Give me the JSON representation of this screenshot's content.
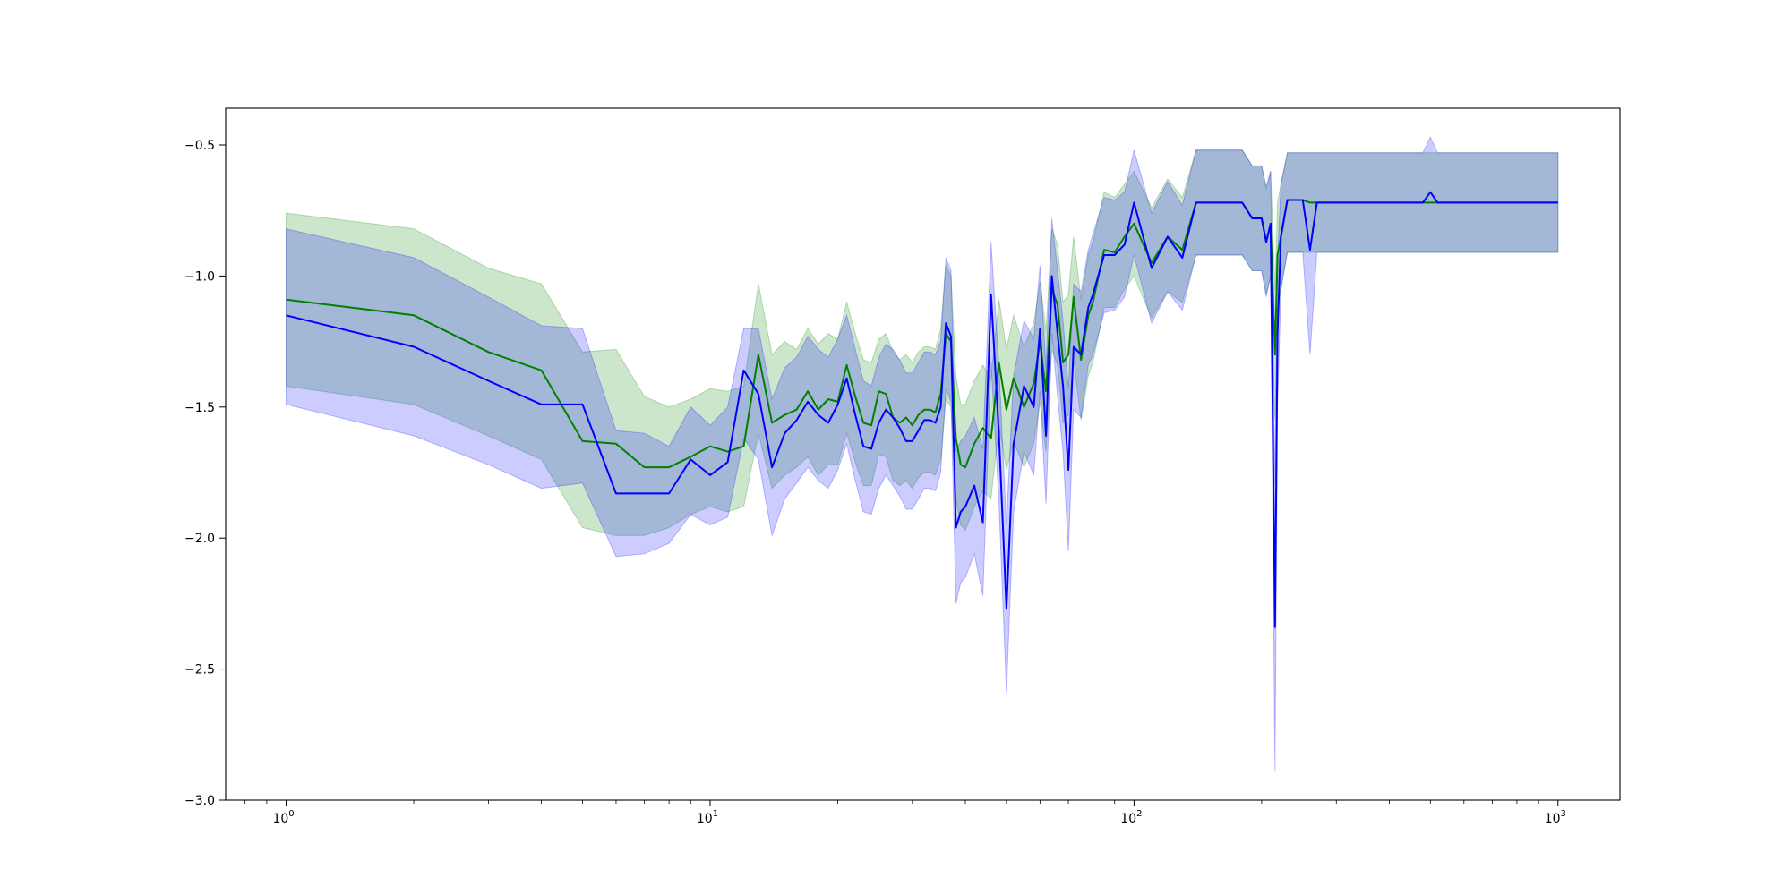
{
  "chart_data": {
    "type": "line",
    "title": "",
    "xlabel": "",
    "ylabel": "",
    "xscale": "log",
    "xlim": [
      0.72,
      1400
    ],
    "ylim": [
      -3.0,
      -0.36
    ],
    "grid": false,
    "legend": "none",
    "x_ticks": [
      {
        "value": 1,
        "base": "10",
        "exp": "0"
      },
      {
        "value": 10,
        "base": "10",
        "exp": "1"
      },
      {
        "value": 100,
        "base": "10",
        "exp": "2"
      },
      {
        "value": 1000,
        "base": "10",
        "exp": "3"
      }
    ],
    "y_ticks": [
      {
        "value": -0.5,
        "label": "−0.5"
      },
      {
        "value": -1.0,
        "label": "−1.0"
      },
      {
        "value": -1.5,
        "label": "−1.5"
      },
      {
        "value": -2.0,
        "label": "−2.0"
      },
      {
        "value": -2.5,
        "label": "−2.5"
      },
      {
        "value": -3.0,
        "label": "−3.0"
      }
    ],
    "series": [
      {
        "color": "#008000",
        "band_color": "#008000",
        "band_opacity": 0.2,
        "x": [
          1,
          2,
          3,
          4,
          5,
          6,
          7,
          8,
          9,
          10,
          11,
          12,
          13,
          14,
          15,
          16,
          17,
          18,
          19,
          20,
          21,
          22,
          23,
          24,
          25,
          26,
          27,
          28,
          29,
          30,
          31,
          32,
          33,
          34,
          35,
          36,
          37,
          38,
          39,
          40,
          42,
          44,
          46,
          48,
          50,
          52,
          55,
          58,
          60,
          62,
          64,
          66,
          68,
          70,
          72,
          75,
          78,
          80,
          85,
          90,
          95,
          100,
          110,
          120,
          130,
          140,
          150,
          160,
          170,
          180,
          190,
          200,
          205,
          210,
          215,
          218,
          222,
          230,
          240,
          250,
          260,
          270,
          280,
          300,
          320,
          350,
          400,
          450,
          480,
          500,
          520,
          600,
          700,
          800,
          900,
          1000
        ],
        "y": [
          -1.09,
          -1.15,
          -1.29,
          -1.36,
          -1.63,
          -1.64,
          -1.73,
          -1.73,
          -1.69,
          -1.65,
          -1.67,
          -1.65,
          -1.3,
          -1.56,
          -1.53,
          -1.51,
          -1.44,
          -1.51,
          -1.47,
          -1.48,
          -1.34,
          -1.46,
          -1.56,
          -1.57,
          -1.44,
          -1.45,
          -1.54,
          -1.56,
          -1.54,
          -1.57,
          -1.53,
          -1.51,
          -1.51,
          -1.52,
          -1.45,
          -1.22,
          -1.25,
          -1.62,
          -1.72,
          -1.73,
          -1.64,
          -1.58,
          -1.62,
          -1.33,
          -1.51,
          -1.39,
          -1.5,
          -1.41,
          -1.25,
          -1.44,
          -1.05,
          -1.11,
          -1.33,
          -1.3,
          -1.08,
          -1.32,
          -1.15,
          -1.1,
          -0.9,
          -0.91,
          -0.85,
          -0.8,
          -0.95,
          -0.85,
          -0.9,
          -0.72,
          -0.72,
          -0.72,
          -0.72,
          -0.72,
          -0.78,
          -0.78,
          -0.87,
          -0.8,
          -1.3,
          -0.92,
          -0.85,
          -0.71,
          -0.71,
          -0.71,
          -0.72,
          -0.72,
          -0.72,
          -0.72,
          -0.72,
          -0.72,
          -0.72,
          -0.72,
          -0.72,
          -0.72,
          -0.72,
          -0.72,
          -0.72,
          -0.72,
          -0.72,
          -0.72
        ],
        "lower": [
          -1.42,
          -1.49,
          -1.61,
          -1.7,
          -1.96,
          -1.99,
          -1.99,
          -1.96,
          -1.91,
          -1.88,
          -1.9,
          -1.88,
          -1.6,
          -1.81,
          -1.76,
          -1.73,
          -1.69,
          -1.76,
          -1.72,
          -1.72,
          -1.6,
          -1.71,
          -1.8,
          -1.8,
          -1.68,
          -1.69,
          -1.78,
          -1.8,
          -1.78,
          -1.81,
          -1.77,
          -1.75,
          -1.75,
          -1.76,
          -1.7,
          -1.47,
          -1.5,
          -1.85,
          -1.95,
          -1.97,
          -1.88,
          -1.82,
          -1.85,
          -1.57,
          -1.74,
          -1.63,
          -1.73,
          -1.64,
          -1.48,
          -1.67,
          -1.28,
          -1.34,
          -1.56,
          -1.53,
          -1.32,
          -1.55,
          -1.38,
          -1.33,
          -1.12,
          -1.12,
          -1.05,
          -1.0,
          -1.16,
          -1.06,
          -1.1,
          -0.92,
          -0.92,
          -0.92,
          -0.92,
          -0.92,
          -0.98,
          -0.98,
          -1.07,
          -1.0,
          -1.55,
          -1.13,
          -1.05,
          -0.91,
          -0.91,
          -0.91,
          -0.91,
          -0.91,
          -0.91,
          -0.91,
          -0.91,
          -0.91,
          -0.91,
          -0.91,
          -0.91,
          -0.91,
          -0.91,
          -0.91,
          -0.91,
          -0.91,
          -0.91,
          -0.91
        ],
        "upper": [
          -0.76,
          -0.82,
          -0.97,
          -1.03,
          -1.29,
          -1.28,
          -1.46,
          -1.5,
          -1.47,
          -1.43,
          -1.44,
          -1.42,
          -1.03,
          -1.3,
          -1.25,
          -1.28,
          -1.2,
          -1.26,
          -1.22,
          -1.24,
          -1.1,
          -1.22,
          -1.32,
          -1.33,
          -1.24,
          -1.22,
          -1.29,
          -1.32,
          -1.3,
          -1.33,
          -1.29,
          -1.27,
          -1.27,
          -1.28,
          -1.2,
          -0.96,
          -1.0,
          -1.38,
          -1.49,
          -1.49,
          -1.4,
          -1.34,
          -1.39,
          -1.09,
          -1.28,
          -1.15,
          -1.27,
          -1.18,
          -1.02,
          -1.21,
          -0.82,
          -0.88,
          -1.1,
          -1.07,
          -0.85,
          -1.09,
          -0.92,
          -0.87,
          -0.68,
          -0.7,
          -0.65,
          -0.6,
          -0.74,
          -0.63,
          -0.7,
          -0.52,
          -0.52,
          -0.52,
          -0.52,
          -0.52,
          -0.58,
          -0.58,
          -0.67,
          -0.6,
          -1.05,
          -0.72,
          -0.65,
          -0.53,
          -0.53,
          -0.53,
          -0.53,
          -0.53,
          -0.53,
          -0.53,
          -0.53,
          -0.53,
          -0.53,
          -0.53,
          -0.53,
          -0.53,
          -0.53,
          -0.53,
          -0.53,
          -0.53,
          -0.53,
          -0.53
        ]
      },
      {
        "color": "#0000ff",
        "band_color": "#0000ff",
        "band_opacity": 0.2,
        "x": [
          1,
          2,
          3,
          4,
          5,
          6,
          7,
          8,
          9,
          10,
          11,
          12,
          13,
          14,
          15,
          16,
          17,
          18,
          19,
          20,
          21,
          22,
          23,
          24,
          25,
          26,
          27,
          28,
          29,
          30,
          31,
          32,
          33,
          34,
          35,
          36,
          37,
          38,
          39,
          40,
          42,
          44,
          46,
          48,
          50,
          52,
          55,
          58,
          60,
          62,
          64,
          66,
          68,
          70,
          72,
          75,
          78,
          80,
          85,
          90,
          95,
          100,
          110,
          120,
          130,
          140,
          150,
          160,
          170,
          180,
          190,
          200,
          205,
          210,
          215,
          218,
          222,
          230,
          240,
          250,
          260,
          270,
          280,
          300,
          320,
          350,
          400,
          450,
          480,
          500,
          520,
          600,
          700,
          800,
          900,
          1000
        ],
        "y": [
          -1.15,
          -1.27,
          -1.4,
          -1.49,
          -1.49,
          -1.83,
          -1.83,
          -1.83,
          -1.7,
          -1.76,
          -1.71,
          -1.36,
          -1.45,
          -1.73,
          -1.6,
          -1.55,
          -1.48,
          -1.53,
          -1.56,
          -1.49,
          -1.39,
          -1.53,
          -1.65,
          -1.66,
          -1.56,
          -1.51,
          -1.54,
          -1.58,
          -1.63,
          -1.63,
          -1.59,
          -1.55,
          -1.55,
          -1.56,
          -1.5,
          -1.18,
          -1.23,
          -1.96,
          -1.9,
          -1.88,
          -1.8,
          -1.94,
          -1.07,
          -1.6,
          -2.27,
          -1.64,
          -1.42,
          -1.5,
          -1.2,
          -1.61,
          -1.0,
          -1.22,
          -1.42,
          -1.74,
          -1.27,
          -1.3,
          -1.12,
          -1.07,
          -0.92,
          -0.92,
          -0.88,
          -0.72,
          -0.97,
          -0.85,
          -0.93,
          -0.72,
          -0.72,
          -0.72,
          -0.72,
          -0.72,
          -0.78,
          -0.78,
          -0.87,
          -0.8,
          -2.34,
          -1.22,
          -0.85,
          -0.71,
          -0.71,
          -0.71,
          -0.9,
          -0.72,
          -0.72,
          -0.72,
          -0.72,
          -0.72,
          -0.72,
          -0.72,
          -0.72,
          -0.68,
          -0.72,
          -0.72,
          -0.72,
          -0.72,
          -0.72,
          -0.72
        ],
        "lower": [
          -1.49,
          -1.61,
          -1.72,
          -1.81,
          -1.79,
          -2.07,
          -2.06,
          -2.02,
          -1.91,
          -1.95,
          -1.92,
          -1.62,
          -1.7,
          -1.99,
          -1.85,
          -1.79,
          -1.73,
          -1.78,
          -1.81,
          -1.74,
          -1.64,
          -1.78,
          -1.9,
          -1.91,
          -1.81,
          -1.76,
          -1.8,
          -1.84,
          -1.89,
          -1.89,
          -1.85,
          -1.81,
          -1.81,
          -1.82,
          -1.75,
          -1.43,
          -1.48,
          -2.25,
          -2.17,
          -2.15,
          -2.06,
          -2.22,
          -1.33,
          -1.86,
          -2.59,
          -1.9,
          -1.67,
          -1.76,
          -1.44,
          -1.87,
          -1.22,
          -1.46,
          -1.67,
          -2.05,
          -1.51,
          -1.54,
          -1.34,
          -1.3,
          -1.14,
          -1.13,
          -1.08,
          -0.92,
          -1.18,
          -1.06,
          -1.13,
          -0.92,
          -0.92,
          -0.92,
          -0.92,
          -0.92,
          -0.98,
          -0.98,
          -1.08,
          -1.0,
          -2.89,
          -1.5,
          -1.05,
          -0.91,
          -0.91,
          -0.91,
          -1.3,
          -0.91,
          -0.91,
          -0.91,
          -0.91,
          -0.91,
          -0.91,
          -0.91,
          -0.91,
          -0.91,
          -0.91,
          -0.91,
          -0.91,
          -0.91,
          -0.91,
          -0.91
        ],
        "upper": [
          -0.82,
          -0.93,
          -1.08,
          -1.19,
          -1.2,
          -1.59,
          -1.6,
          -1.65,
          -1.5,
          -1.57,
          -1.5,
          -1.2,
          -1.2,
          -1.47,
          -1.35,
          -1.31,
          -1.23,
          -1.28,
          -1.31,
          -1.24,
          -1.15,
          -1.28,
          -1.4,
          -1.42,
          -1.31,
          -1.26,
          -1.28,
          -1.32,
          -1.37,
          -1.37,
          -1.33,
          -1.29,
          -1.29,
          -1.3,
          -1.25,
          -0.93,
          -0.98,
          -1.67,
          -1.63,
          -1.61,
          -1.54,
          -1.66,
          -0.87,
          -1.34,
          -1.95,
          -1.38,
          -1.17,
          -1.24,
          -0.96,
          -1.35,
          -0.78,
          -0.98,
          -1.17,
          -1.43,
          -1.03,
          -1.06,
          -0.9,
          -0.84,
          -0.7,
          -0.71,
          -0.68,
          -0.52,
          -0.76,
          -0.64,
          -0.73,
          -0.52,
          -0.52,
          -0.52,
          -0.52,
          -0.52,
          -0.58,
          -0.58,
          -0.66,
          -0.6,
          -1.79,
          -0.94,
          -0.65,
          -0.53,
          -0.53,
          -0.53,
          -0.53,
          -0.53,
          -0.53,
          -0.53,
          -0.53,
          -0.53,
          -0.53,
          -0.53,
          -0.53,
          -0.47,
          -0.53,
          -0.53,
          -0.53,
          -0.53,
          -0.53,
          -0.53
        ]
      }
    ]
  }
}
